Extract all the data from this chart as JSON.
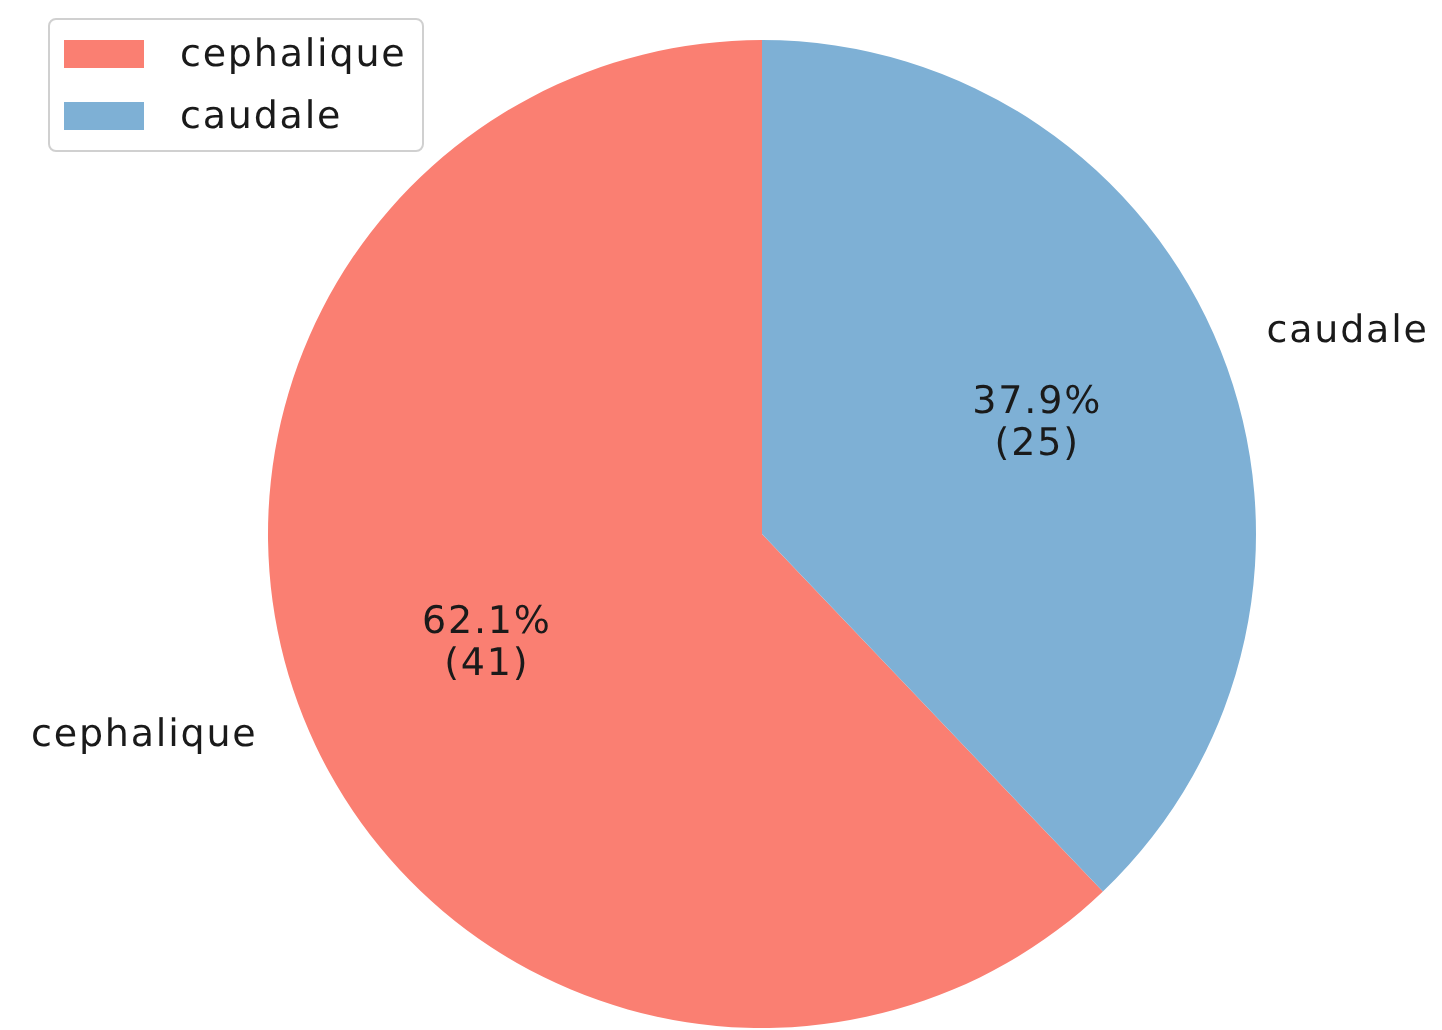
{
  "chart_data": {
    "type": "pie",
    "categories": [
      "cephalique",
      "caudale"
    ],
    "values": [
      41,
      25
    ],
    "colors": [
      "#fa7f72",
      "#7eb0d5"
    ],
    "value_labels": [
      "62.1%\n(41)",
      "37.9%\n(25)"
    ],
    "legend": "top left"
  }
}
